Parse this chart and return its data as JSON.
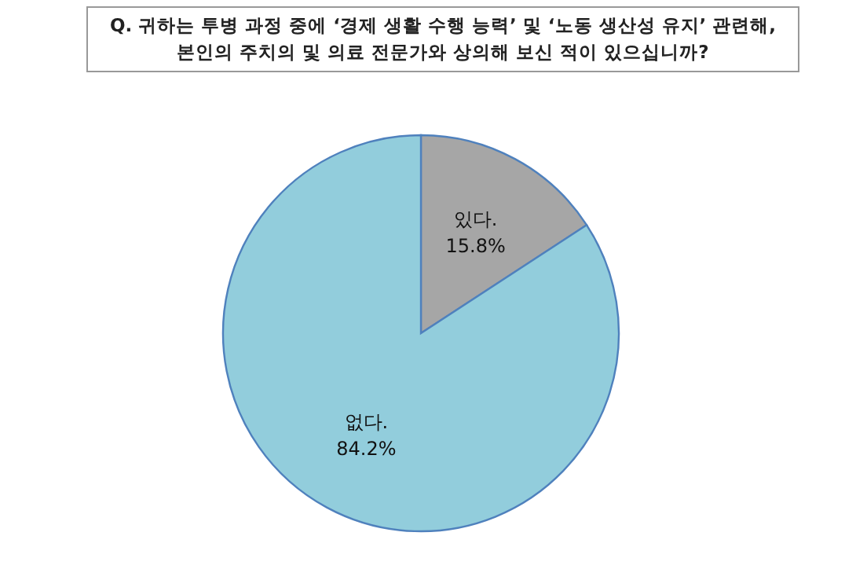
{
  "chart_data": {
    "type": "pie",
    "title": "Q. 귀하는 투병 과정 중에 ‘경제 생활 수행 능력’ 및 ‘노동 생산성 유지’ 관련해, 본인의 주치의 및 의료 전문가와 상의해 보신 적이 있으십니까?",
    "categories": [
      "있다.",
      "없다."
    ],
    "values": [
      15.8,
      84.2
    ],
    "colors": [
      "#a6a6a6",
      "#92cddc"
    ],
    "value_labels": [
      "15.8%",
      "84.2%"
    ]
  }
}
